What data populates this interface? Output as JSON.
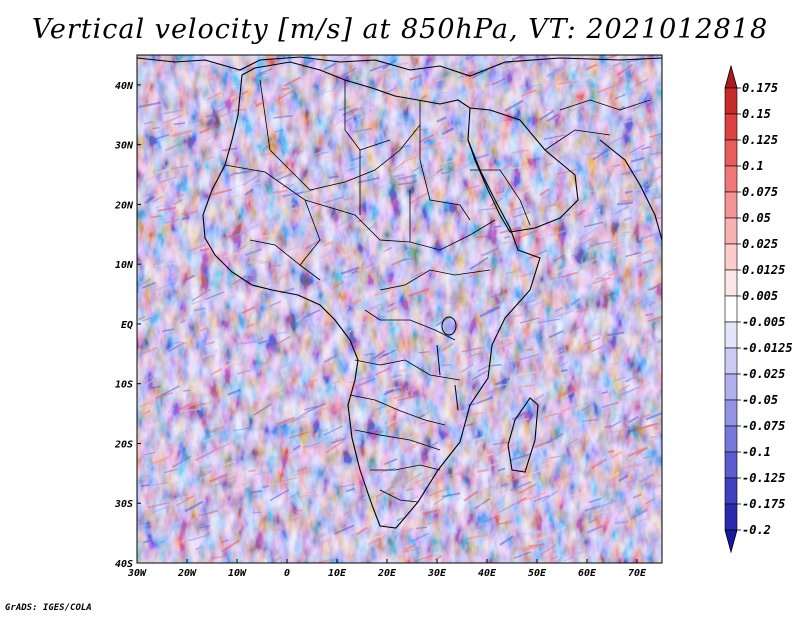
{
  "title": "Vertical velocity [m/s] at 850hPa, VT: 2021012818",
  "credit": "GrADS: IGES/COLA",
  "map": {
    "projection": "lat-lon",
    "lon_range": [
      -30,
      75
    ],
    "lat_range": [
      -40,
      45
    ],
    "lat_ticks": [
      "40N",
      "30N",
      "20N",
      "10N",
      "EQ",
      "10S",
      "20S",
      "30S",
      "40S"
    ],
    "lon_ticks": [
      "30W",
      "20W",
      "10W",
      "0",
      "10E",
      "20E",
      "30E",
      "40E",
      "50E",
      "60E",
      "70E"
    ],
    "field": "vertical velocity (omega-like), shaded"
  },
  "colorbar": {
    "levels": [
      "0.175",
      "0.15",
      "0.125",
      "0.1",
      "0.075",
      "0.05",
      "0.025",
      "0.0125",
      "0.005",
      "-0.005",
      "-0.0125",
      "-0.025",
      "-0.05",
      "-0.075",
      "-0.1",
      "-0.125",
      "-0.175",
      "-0.2"
    ],
    "colors": [
      "#b01820",
      "#c82a2a",
      "#dc4040",
      "#e85c5c",
      "#f07878",
      "#f49494",
      "#f8b0b0",
      "#fbcccc",
      "#fde6e6",
      "#ffffff",
      "#e4e4fa",
      "#cacaf4",
      "#b0b0ee",
      "#9494e6",
      "#7878dc",
      "#5c5cd0",
      "#4040c0",
      "#2a2aae",
      "#1818a0"
    ]
  }
}
